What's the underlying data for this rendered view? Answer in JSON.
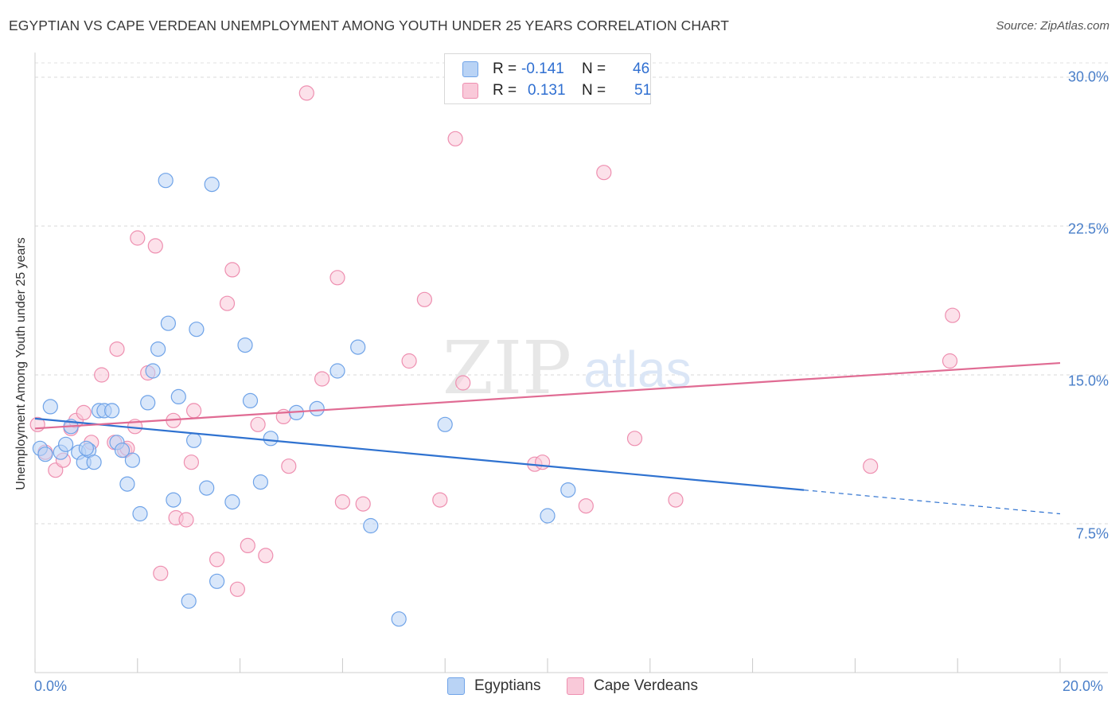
{
  "header": {
    "title": "EGYPTIAN VS CAPE VERDEAN UNEMPLOYMENT AMONG YOUTH UNDER 25 YEARS CORRELATION CHART",
    "source": "Source: ZipAtlas.com"
  },
  "watermark": {
    "zip": "ZIP",
    "atlas": "atlas"
  },
  "colors": {
    "blue": "#6fa3e8",
    "blue_fill": "#b9d3f5",
    "blue_line": "#2f72d0",
    "pink": "#ee8fb0",
    "pink_fill": "#f9c9d9",
    "pink_line": "#e06b93",
    "tick_text": "#4a7fc9"
  },
  "legend": {
    "rows": [
      {
        "r_label": "R =",
        "r_value": "-0.141",
        "n_label": "N =",
        "n_value": "46"
      },
      {
        "r_label": "R =",
        "r_value": "0.131",
        "n_label": "N =",
        "n_value": "51"
      }
    ]
  },
  "bottom_legend": {
    "egyptians": "Egyptians",
    "cape_verdeans": "Cape Verdeans"
  },
  "axis_text": {
    "ylabel": "Unemployment Among Youth under 25 years",
    "x_min_label": "0.0%",
    "x_max_label": "20.0%",
    "y_labels": [
      "7.5%",
      "15.0%",
      "22.5%",
      "30.0%"
    ]
  },
  "chart_data": {
    "type": "scatter",
    "title": "EGYPTIAN VS CAPE VERDEAN UNEMPLOYMENT AMONG YOUTH UNDER 25 YEARS CORRELATION CHART",
    "xlabel": "",
    "ylabel": "Unemployment Among Youth under 25 years",
    "xlim": [
      0,
      20
    ],
    "ylim": [
      0,
      31.5
    ],
    "y_ticks": [
      7.5,
      15.0,
      22.5,
      30.0
    ],
    "grid": "horizontal dashed",
    "legend_placement": "top-center",
    "series": [
      {
        "name": "Egyptians",
        "R": -0.141,
        "N": 46,
        "trend": {
          "x0": 0,
          "y0": 12.8,
          "x1": 15.0,
          "y1": 9.2,
          "dashed_to_x": 20.0,
          "dashed_to_y": 8.0
        },
        "points": [
          [
            0.1,
            11.3
          ],
          [
            0.3,
            13.4
          ],
          [
            0.5,
            11.1
          ],
          [
            0.6,
            11.5
          ],
          [
            0.7,
            12.4
          ],
          [
            0.85,
            11.1
          ],
          [
            0.95,
            10.6
          ],
          [
            1.05,
            11.2
          ],
          [
            1.15,
            10.6
          ],
          [
            1.25,
            13.2
          ],
          [
            1.35,
            13.2
          ],
          [
            1.5,
            13.2
          ],
          [
            1.6,
            11.6
          ],
          [
            1.7,
            11.2
          ],
          [
            1.8,
            9.5
          ],
          [
            1.9,
            10.7
          ],
          [
            2.05,
            8.0
          ],
          [
            2.2,
            13.6
          ],
          [
            2.3,
            15.2
          ],
          [
            2.4,
            16.3
          ],
          [
            2.55,
            24.8
          ],
          [
            2.6,
            17.6
          ],
          [
            2.7,
            8.7
          ],
          [
            2.8,
            13.9
          ],
          [
            3.0,
            3.6
          ],
          [
            3.1,
            11.7
          ],
          [
            3.15,
            17.3
          ],
          [
            3.35,
            9.3
          ],
          [
            3.45,
            24.6
          ],
          [
            3.55,
            4.6
          ],
          [
            3.85,
            8.6
          ],
          [
            4.1,
            16.5
          ],
          [
            4.2,
            13.7
          ],
          [
            4.4,
            9.6
          ],
          [
            4.6,
            11.8
          ],
          [
            5.1,
            13.1
          ],
          [
            5.5,
            13.3
          ],
          [
            5.9,
            15.2
          ],
          [
            6.3,
            16.4
          ],
          [
            6.55,
            7.4
          ],
          [
            7.1,
            2.7
          ],
          [
            8.0,
            12.5
          ],
          [
            10.0,
            7.9
          ],
          [
            10.4,
            9.2
          ],
          [
            0.2,
            11.0
          ],
          [
            1.0,
            11.3
          ]
        ]
      },
      {
        "name": "Cape Verdeans",
        "R": 0.131,
        "N": 51,
        "trend": {
          "x0": 0,
          "y0": 12.3,
          "x1": 20.0,
          "y1": 15.6
        },
        "points": [
          [
            0.05,
            12.5
          ],
          [
            0.2,
            11.1
          ],
          [
            0.4,
            10.2
          ],
          [
            0.55,
            10.7
          ],
          [
            0.7,
            12.3
          ],
          [
            0.8,
            12.7
          ],
          [
            0.95,
            13.1
          ],
          [
            1.1,
            11.6
          ],
          [
            1.3,
            15.0
          ],
          [
            1.55,
            11.6
          ],
          [
            1.6,
            16.3
          ],
          [
            1.75,
            11.2
          ],
          [
            1.95,
            12.4
          ],
          [
            2.0,
            21.9
          ],
          [
            2.2,
            15.1
          ],
          [
            2.35,
            21.5
          ],
          [
            2.45,
            5.0
          ],
          [
            2.7,
            12.7
          ],
          [
            2.75,
            7.8
          ],
          [
            2.95,
            7.7
          ],
          [
            3.05,
            10.6
          ],
          [
            3.1,
            13.2
          ],
          [
            3.55,
            5.7
          ],
          [
            3.75,
            18.6
          ],
          [
            3.85,
            20.3
          ],
          [
            3.95,
            4.2
          ],
          [
            4.15,
            6.4
          ],
          [
            4.35,
            12.5
          ],
          [
            4.5,
            5.9
          ],
          [
            4.85,
            12.9
          ],
          [
            4.95,
            10.4
          ],
          [
            5.3,
            29.2
          ],
          [
            5.6,
            14.8
          ],
          [
            5.9,
            19.9
          ],
          [
            6.0,
            8.6
          ],
          [
            6.4,
            8.5
          ],
          [
            7.3,
            15.7
          ],
          [
            7.6,
            18.8
          ],
          [
            7.9,
            8.7
          ],
          [
            8.2,
            26.9
          ],
          [
            8.35,
            14.6
          ],
          [
            9.75,
            10.5
          ],
          [
            9.9,
            10.6
          ],
          [
            10.75,
            8.4
          ],
          [
            11.1,
            25.2
          ],
          [
            11.7,
            11.8
          ],
          [
            12.5,
            8.7
          ],
          [
            16.3,
            10.4
          ],
          [
            17.85,
            15.7
          ],
          [
            17.9,
            18.0
          ],
          [
            1.8,
            11.3
          ]
        ]
      }
    ]
  }
}
